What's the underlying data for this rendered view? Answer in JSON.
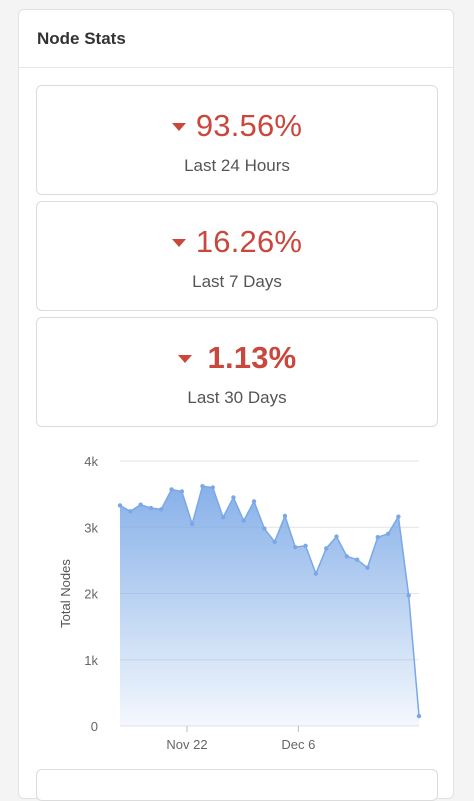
{
  "panel": {
    "title": "Node Stats"
  },
  "stats": [
    {
      "value": "93.56%",
      "label": "Last 24 Hours",
      "trend": "down"
    },
    {
      "value": "16.26%",
      "label": "Last 7 Days",
      "trend": "down"
    },
    {
      "value": "1.13%",
      "label": "Last 30 Days",
      "trend": "down"
    }
  ],
  "colors": {
    "down": "#c9473d",
    "series": "#7aa8e6"
  },
  "chart_data": {
    "type": "area",
    "ylabel": "Total Nodes",
    "xlabel": "",
    "ylim": [
      0,
      4000
    ],
    "yticks": [
      {
        "value": 0,
        "label": "0"
      },
      {
        "value": 1000,
        "label": "1k"
      },
      {
        "value": 2000,
        "label": "2k"
      },
      {
        "value": 3000,
        "label": "3k"
      },
      {
        "value": 4000,
        "label": "4k"
      }
    ],
    "xticks": [
      {
        "index": 6.5,
        "label": "Nov 22"
      },
      {
        "index": 17.3,
        "label": "Dec 6"
      }
    ],
    "grid": true,
    "values": [
      3330,
      3240,
      3340,
      3290,
      3270,
      3570,
      3540,
      3050,
      3620,
      3600,
      3150,
      3450,
      3100,
      3390,
      2980,
      2780,
      3170,
      2700,
      2720,
      2300,
      2680,
      2860,
      2560,
      2510,
      2390,
      2850,
      2900,
      3160,
      1970,
      150
    ]
  }
}
